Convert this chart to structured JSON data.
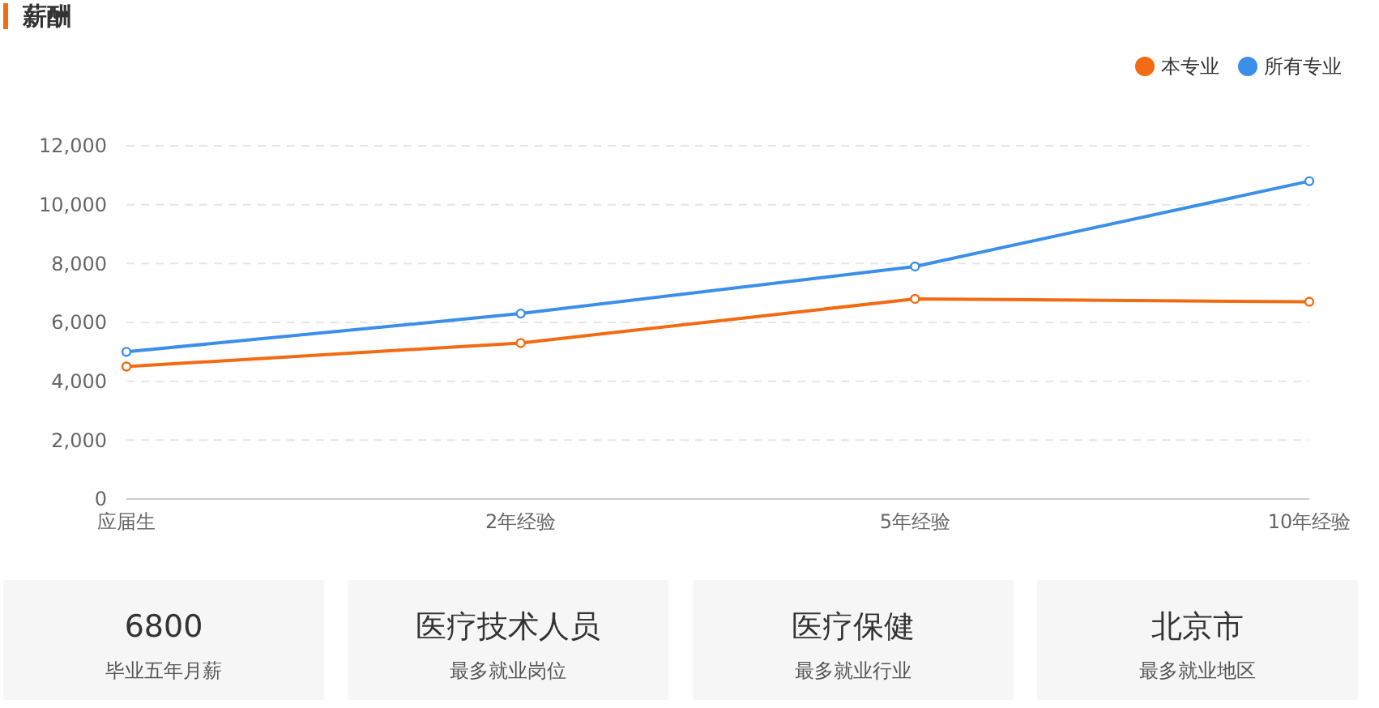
{
  "chart_data": [
    {
      "type": "line",
      "title": "薪酬",
      "categories": [
        "应届生",
        "2年经验",
        "5年经验",
        "10年经验"
      ],
      "series": [
        {
          "name": "本专业",
          "color": "#f26b13",
          "values": [
            4500,
            5300,
            6800,
            6700
          ]
        },
        {
          "name": "所有专业",
          "color": "#3b8fe8",
          "values": [
            5000,
            6300,
            7900,
            10800
          ]
        }
      ],
      "ylim": [
        0,
        12000
      ],
      "yticks": [
        {
          "value": 0,
          "label": "0"
        },
        {
          "value": 2000,
          "label": "2,000"
        },
        {
          "value": 4000,
          "label": "4,000"
        },
        {
          "value": 6000,
          "label": "6,000"
        },
        {
          "value": 8000,
          "label": "8,000"
        },
        {
          "value": 10000,
          "label": "10,000"
        },
        {
          "value": 12000,
          "label": "12,000"
        }
      ],
      "grid": "y",
      "legend": "top right",
      "marker": "circle",
      "line_style": "solid"
    },
    {
      "type": "other",
      "annotations": [
        "6800",
        "毕业五年月薪",
        "医疗技术人员",
        "最多就业岗位",
        "医疗保健",
        "最多就业行业",
        "北京市",
        "最多就业地区"
      ]
    }
  ]
}
